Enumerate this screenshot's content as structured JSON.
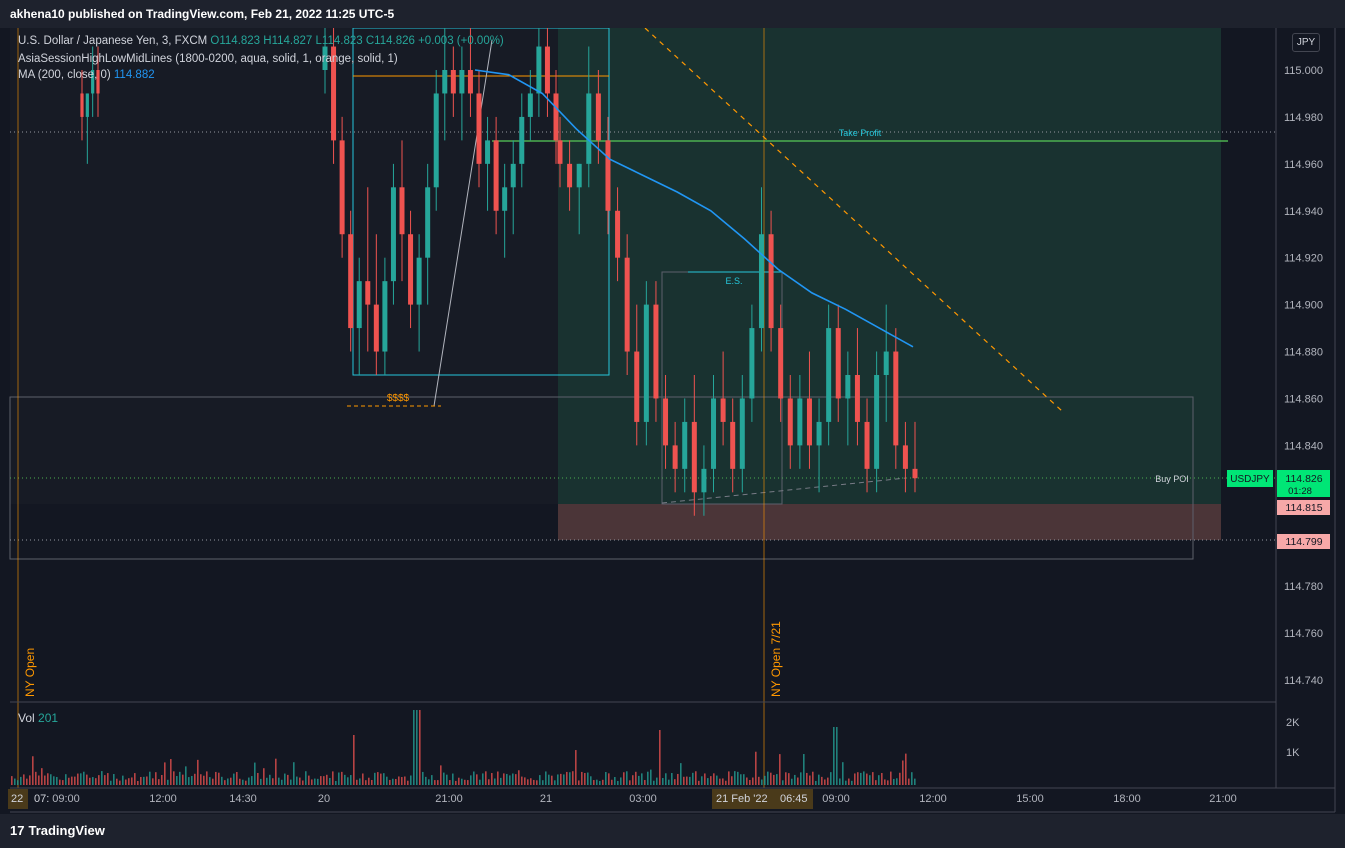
{
  "header": {
    "title": "akhena10 published on TradingView.com, Feb 21, 2022 11:25 UTC-5"
  },
  "legend": {
    "symbol_line": {
      "name": "U.S. Dollar / Japanese Yen, 3, FXCM",
      "o": "O114.823",
      "h": "H114.827",
      "l": "L114.823",
      "c": "C114.826",
      "chg": "+0.003 (+0.00%)"
    },
    "indicator_line": "AsiaSessionHighLowMidLines (1800-0200, aqua, solid, 1, orange, solid, 1)",
    "ma_line": {
      "label": "MA (200, close, 0)",
      "value": "114.882"
    },
    "vol": {
      "label": "Vol",
      "value": "201"
    }
  },
  "currency_button": "JPY",
  "footer": {
    "logo": "TradingView",
    "logo_mark": "17"
  },
  "chart_data": {
    "type": "candlestick",
    "symbol": "USDJPY",
    "interval": "3",
    "ylim": [
      114.725,
      115.025
    ],
    "y_ticks": [
      "115.000",
      "114.980",
      "114.960",
      "114.940",
      "114.920",
      "114.900",
      "114.880",
      "114.860",
      "114.840",
      "114.820",
      "114.800",
      "114.780",
      "114.760",
      "114.740"
    ],
    "x_ticks": [
      "09:00",
      "12:00",
      "14:30",
      "20",
      "21:00",
      "21",
      "03:00",
      "09:00",
      "12:00",
      "15:00",
      "18:00",
      "21:00"
    ],
    "x_edge_labels": [
      "22",
      "07:"
    ],
    "x_highlight": [
      "21 Feb '22",
      "06:45"
    ],
    "vol_ticks": [
      "2K",
      "1K"
    ],
    "price_labels": [
      {
        "text": "USDJPY",
        "color": "#00e676"
      },
      {
        "text": "114.826",
        "sub": "01:28",
        "color": "#00e676"
      },
      {
        "text": "114.815",
        "color": "#f7a8a8"
      },
      {
        "text": "114.799",
        "color": "#f7a8a8"
      }
    ],
    "annotations": {
      "take_profit": {
        "label": "Take Profit",
        "price": 114.971
      },
      "es": {
        "label": "E.S.",
        "price": 114.913
      },
      "buy_poi": {
        "label": "Buy POI",
        "price": 114.826
      },
      "stops": {
        "label": "$$$$",
        "price": 114.857
      },
      "ny_open_1": {
        "label": "NY Open"
      },
      "ny_open_2": {
        "label": "NY Open 7/21"
      }
    },
    "ma_200": [
      115.0,
      114.998,
      114.99,
      114.975,
      114.962,
      114.955,
      114.948,
      114.94,
      114.928,
      114.915,
      114.905,
      114.898,
      114.89,
      114.882
    ],
    "series": [
      {
        "segment": "feb20-early",
        "ohlc": [
          [
            114.99,
            115.0,
            114.97,
            114.98
          ],
          [
            114.98,
            114.99,
            114.96,
            114.99
          ],
          [
            114.99,
            115.01,
            114.98,
            115.0
          ],
          [
            115.0,
            115.01,
            114.98,
            114.99
          ]
        ]
      },
      {
        "segment": "feb20-evening",
        "ohlc": [
          [
            115.0,
            115.02,
            114.99,
            115.01
          ],
          [
            115.01,
            115.02,
            114.96,
            114.97
          ],
          [
            114.97,
            114.98,
            114.92,
            114.93
          ],
          [
            114.93,
            114.94,
            114.88,
            114.89
          ],
          [
            114.89,
            114.92,
            114.87,
            114.91
          ],
          [
            114.91,
            114.95,
            114.88,
            114.9
          ],
          [
            114.9,
            114.93,
            114.87,
            114.88
          ],
          [
            114.88,
            114.92,
            114.87,
            114.91
          ],
          [
            114.91,
            114.96,
            114.9,
            114.95
          ],
          [
            114.95,
            114.97,
            114.91,
            114.93
          ],
          [
            114.93,
            114.94,
            114.89,
            114.9
          ],
          [
            114.9,
            114.93,
            114.88,
            114.92
          ],
          [
            114.92,
            114.96,
            114.9,
            114.95
          ],
          [
            114.95,
            115.0,
            114.94,
            114.99
          ],
          [
            114.99,
            115.02,
            114.97,
            115.0
          ],
          [
            115.0,
            115.01,
            114.98,
            114.99
          ],
          [
            114.99,
            115.01,
            114.97,
            115.0
          ],
          [
            115.0,
            115.02,
            114.98,
            114.99
          ],
          [
            114.99,
            115.0,
            114.95,
            114.96
          ],
          [
            114.96,
            114.98,
            114.94,
            114.97
          ],
          [
            114.97,
            114.98,
            114.93,
            114.94
          ],
          [
            114.94,
            114.96,
            114.92,
            114.95
          ],
          [
            114.95,
            114.97,
            114.93,
            114.96
          ],
          [
            114.96,
            114.99,
            114.95,
            114.98
          ],
          [
            114.98,
            115.0,
            114.97,
            114.99
          ],
          [
            114.99,
            115.02,
            114.98,
            115.01
          ],
          [
            115.01,
            115.02,
            114.98,
            114.99
          ],
          [
            114.99,
            115.0,
            114.96,
            114.97
          ]
        ]
      },
      {
        "segment": "feb21",
        "ohlc": [
          [
            114.97,
            114.98,
            114.95,
            114.96
          ],
          [
            114.96,
            114.97,
            114.94,
            114.95
          ],
          [
            114.95,
            114.96,
            114.93,
            114.96
          ],
          [
            114.96,
            115.01,
            114.95,
            114.99
          ],
          [
            114.99,
            115.0,
            114.96,
            114.97
          ],
          [
            114.97,
            114.98,
            114.93,
            114.94
          ],
          [
            114.94,
            114.95,
            114.91,
            114.92
          ],
          [
            114.92,
            114.93,
            114.87,
            114.88
          ],
          [
            114.88,
            114.9,
            114.84,
            114.85
          ],
          [
            114.85,
            114.91,
            114.84,
            114.9
          ],
          [
            114.9,
            114.91,
            114.85,
            114.86
          ],
          [
            114.86,
            114.87,
            114.83,
            114.84
          ],
          [
            114.84,
            114.85,
            114.82,
            114.83
          ],
          [
            114.83,
            114.86,
            114.82,
            114.85
          ],
          [
            114.85,
            114.87,
            114.81,
            114.82
          ],
          [
            114.82,
            114.84,
            114.81,
            114.83
          ],
          [
            114.83,
            114.87,
            114.82,
            114.86
          ],
          [
            114.86,
            114.88,
            114.84,
            114.85
          ],
          [
            114.85,
            114.86,
            114.82,
            114.83
          ],
          [
            114.83,
            114.87,
            114.82,
            114.86
          ],
          [
            114.86,
            114.9,
            114.85,
            114.89
          ],
          [
            114.89,
            114.95,
            114.88,
            114.93
          ],
          [
            114.93,
            114.94,
            114.88,
            114.89
          ],
          [
            114.89,
            114.9,
            114.85,
            114.86
          ],
          [
            114.86,
            114.87,
            114.83,
            114.84
          ],
          [
            114.84,
            114.87,
            114.83,
            114.86
          ],
          [
            114.86,
            114.88,
            114.83,
            114.84
          ],
          [
            114.84,
            114.86,
            114.82,
            114.85
          ],
          [
            114.85,
            114.9,
            114.84,
            114.89
          ],
          [
            114.89,
            114.9,
            114.85,
            114.86
          ],
          [
            114.86,
            114.88,
            114.84,
            114.87
          ],
          [
            114.87,
            114.89,
            114.84,
            114.85
          ],
          [
            114.85,
            114.86,
            114.82,
            114.83
          ],
          [
            114.83,
            114.88,
            114.82,
            114.87
          ],
          [
            114.87,
            114.9,
            114.85,
            114.88
          ],
          [
            114.88,
            114.89,
            114.83,
            114.84
          ],
          [
            114.84,
            114.85,
            114.82,
            114.83
          ],
          [
            114.83,
            114.85,
            114.82,
            114.826
          ]
        ]
      }
    ]
  }
}
